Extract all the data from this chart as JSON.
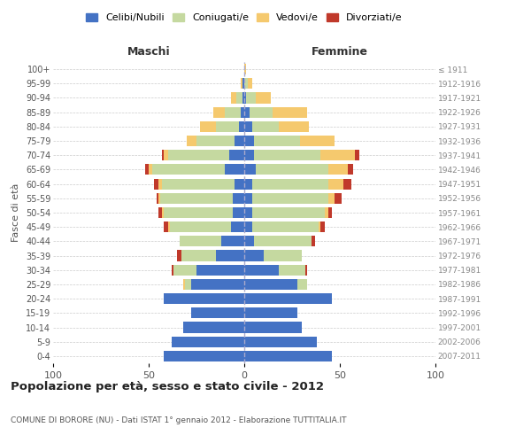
{
  "age_groups": [
    "0-4",
    "5-9",
    "10-14",
    "15-19",
    "20-24",
    "25-29",
    "30-34",
    "35-39",
    "40-44",
    "45-49",
    "50-54",
    "55-59",
    "60-64",
    "65-69",
    "70-74",
    "75-79",
    "80-84",
    "85-89",
    "90-94",
    "95-99",
    "100+"
  ],
  "birth_years": [
    "2007-2011",
    "2002-2006",
    "1997-2001",
    "1992-1996",
    "1987-1991",
    "1982-1986",
    "1977-1981",
    "1972-1976",
    "1967-1971",
    "1962-1966",
    "1957-1961",
    "1952-1956",
    "1947-1951",
    "1942-1946",
    "1937-1941",
    "1932-1936",
    "1927-1931",
    "1922-1926",
    "1917-1921",
    "1912-1916",
    "≤ 1911"
  ],
  "colors": {
    "celibe": "#4472c4",
    "coniugato": "#c5d9a0",
    "vedovo": "#f5c96e",
    "divorziato": "#c0392b"
  },
  "maschi": {
    "celibe": [
      42,
      38,
      32,
      28,
      42,
      28,
      25,
      15,
      12,
      7,
      6,
      6,
      5,
      10,
      8,
      5,
      3,
      2,
      1,
      1,
      0
    ],
    "coniugato": [
      0,
      0,
      0,
      0,
      0,
      3,
      12,
      18,
      22,
      32,
      36,
      38,
      38,
      38,
      32,
      20,
      12,
      8,
      3,
      0,
      0
    ],
    "vedovo": [
      0,
      0,
      0,
      0,
      0,
      1,
      0,
      0,
      0,
      1,
      1,
      1,
      2,
      2,
      2,
      5,
      8,
      6,
      3,
      1,
      0
    ],
    "divorziato": [
      0,
      0,
      0,
      0,
      0,
      0,
      1,
      2,
      0,
      2,
      2,
      1,
      2,
      2,
      1,
      0,
      0,
      0,
      0,
      0,
      0
    ]
  },
  "femmine": {
    "celibe": [
      46,
      38,
      30,
      28,
      46,
      28,
      18,
      10,
      5,
      4,
      4,
      4,
      4,
      6,
      5,
      5,
      4,
      3,
      1,
      0,
      0
    ],
    "coniugato": [
      0,
      0,
      0,
      0,
      0,
      5,
      14,
      20,
      30,
      35,
      38,
      40,
      40,
      38,
      35,
      24,
      14,
      12,
      5,
      2,
      0
    ],
    "vedovo": [
      0,
      0,
      0,
      0,
      0,
      0,
      0,
      0,
      0,
      1,
      2,
      3,
      8,
      10,
      18,
      18,
      16,
      18,
      8,
      2,
      1
    ],
    "divorziato": [
      0,
      0,
      0,
      0,
      0,
      0,
      1,
      0,
      2,
      2,
      2,
      4,
      4,
      3,
      2,
      0,
      0,
      0,
      0,
      0,
      0
    ]
  },
  "xlim": 100,
  "title": "Popolazione per età, sesso e stato civile - 2012",
  "subtitle": "COMUNE DI BORORE (NU) - Dati ISTAT 1° gennaio 2012 - Elaborazione TUTTITALIA.IT",
  "xlabel_left": "Maschi",
  "xlabel_right": "Femmine",
  "ylabel_left": "Fasce di età",
  "legend_labels": [
    "Celibi/Nubili",
    "Coniugati/e",
    "Vedovi/e",
    "Divorziati/e"
  ]
}
